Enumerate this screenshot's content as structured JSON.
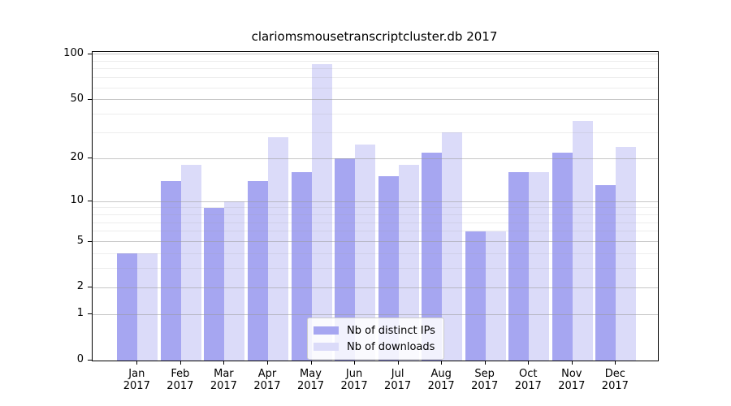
{
  "title": "clariomsmousetranscriptcluster.db 2017",
  "chart_data": {
    "type": "bar",
    "title": "clariomsmousetranscriptcluster.db 2017",
    "categories": [
      "Jan 2017",
      "Feb 2017",
      "Mar 2017",
      "Apr 2017",
      "May 2017",
      "Jun 2017",
      "Jul 2017",
      "Aug 2017",
      "Sep 2017",
      "Oct 2017",
      "Nov 2017",
      "Dec 2017"
    ],
    "months": [
      "Jan",
      "Feb",
      "Mar",
      "Apr",
      "May",
      "Jun",
      "Jul",
      "Aug",
      "Sep",
      "Oct",
      "Nov",
      "Dec"
    ],
    "year": "2017",
    "series": [
      {
        "name": "Nb of distinct IPs",
        "key": "ips",
        "color": "#a6a6f1",
        "values": [
          4,
          14,
          9,
          14,
          16,
          20,
          15,
          22,
          6,
          16,
          22,
          13
        ]
      },
      {
        "name": "Nb of downloads",
        "key": "downloads",
        "color": "#dbdbf9",
        "values": [
          4,
          18,
          10,
          28,
          86,
          25,
          18,
          30,
          6,
          16,
          36,
          24
        ]
      }
    ],
    "y_axis": {
      "scale": "log10(1+v)",
      "ticks": [
        0,
        1,
        2,
        5,
        10,
        20,
        50,
        100
      ],
      "minor_ticks": [
        3,
        4,
        6,
        7,
        8,
        9,
        30,
        40,
        60,
        70,
        80,
        90
      ],
      "ylim": [
        0,
        104
      ]
    },
    "legend": {
      "position": "lower-center",
      "entries": [
        "Nb of distinct IPs",
        "Nb of downloads"
      ]
    },
    "grid": true,
    "colors": {
      "background": "#ffffff",
      "spine": "#000000",
      "grid": "#999999",
      "bar_ips": "#a6a6f1",
      "bar_downloads": "#dbdbf9"
    }
  }
}
